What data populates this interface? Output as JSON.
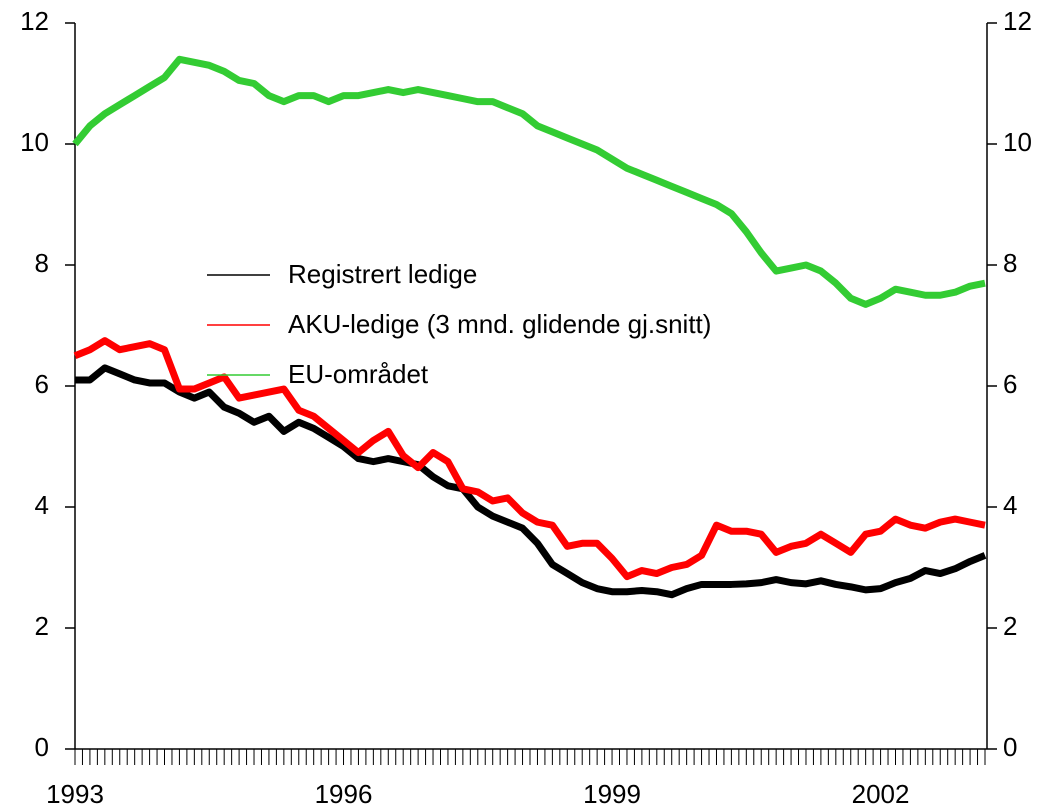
{
  "chart_data": {
    "type": "line",
    "categories": [
      "1993",
      null,
      null,
      null,
      null,
      null,
      null,
      null,
      null,
      null,
      null,
      null,
      null,
      null,
      null,
      null,
      null,
      null,
      "1996",
      null,
      null,
      null,
      null,
      null,
      null,
      null,
      null,
      null,
      null,
      null,
      null,
      null,
      null,
      null,
      null,
      null,
      "1999",
      null,
      null,
      null,
      null,
      null,
      null,
      null,
      null,
      null,
      null,
      null,
      null,
      null,
      null,
      null,
      null,
      null,
      "2002",
      null,
      null,
      null,
      null,
      null,
      null,
      null
    ],
    "series": [
      {
        "name": "Registrert ledige",
        "color": "#000000",
        "values": [
          6.1,
          6.1,
          6.3,
          6.2,
          6.1,
          6.05,
          6.05,
          5.9,
          5.8,
          5.9,
          5.65,
          5.55,
          5.4,
          5.5,
          5.25,
          5.4,
          5.3,
          5.15,
          5.0,
          4.8,
          4.75,
          4.8,
          4.75,
          4.7,
          4.5,
          4.35,
          4.3,
          4.0,
          3.85,
          3.75,
          3.65,
          3.4,
          3.05,
          2.9,
          2.75,
          2.65,
          2.6,
          2.6,
          2.62,
          2.6,
          2.55,
          2.65,
          2.72,
          2.72,
          2.72,
          2.73,
          2.75,
          2.8,
          2.75,
          2.73,
          2.78,
          2.72,
          2.68,
          2.63,
          2.65,
          2.75,
          2.82,
          2.95,
          2.9,
          2.98,
          3.1,
          3.2
        ]
      },
      {
        "name": "AKU-ledige (3 mnd. glidende gj.snitt)",
        "color": "#ff0000",
        "values": [
          6.5,
          6.6,
          6.75,
          6.6,
          6.65,
          6.7,
          6.6,
          5.95,
          5.95,
          6.05,
          6.15,
          5.8,
          5.85,
          5.9,
          5.95,
          5.6,
          5.5,
          5.3,
          5.1,
          4.9,
          5.1,
          5.25,
          4.85,
          4.65,
          4.9,
          4.75,
          4.3,
          4.25,
          4.1,
          4.15,
          3.9,
          3.75,
          3.7,
          3.35,
          3.4,
          3.4,
          3.15,
          2.85,
          2.95,
          2.9,
          3.0,
          3.05,
          3.2,
          3.7,
          3.6,
          3.6,
          3.55,
          3.25,
          3.35,
          3.4,
          3.55,
          3.4,
          3.25,
          3.55,
          3.6,
          3.8,
          3.7,
          3.65,
          3.75,
          3.8,
          3.75,
          3.7
        ]
      },
      {
        "name": "EU-området",
        "color": "#33cc33",
        "values": [
          10.0,
          10.3,
          10.5,
          10.65,
          10.8,
          10.95,
          11.1,
          11.4,
          11.35,
          11.3,
          11.2,
          11.05,
          11.0,
          10.8,
          10.7,
          10.8,
          10.8,
          10.7,
          10.8,
          10.8,
          10.85,
          10.9,
          10.85,
          10.9,
          10.85,
          10.8,
          10.75,
          10.7,
          10.7,
          10.6,
          10.5,
          10.3,
          10.2,
          10.1,
          10.0,
          9.9,
          9.75,
          9.6,
          9.5,
          9.4,
          9.3,
          9.2,
          9.1,
          9.0,
          8.85,
          8.55,
          8.2,
          7.9,
          7.95,
          8.0,
          7.9,
          7.7,
          7.45,
          7.35,
          7.45,
          7.6,
          7.55,
          7.5,
          7.5,
          7.55,
          7.65,
          7.7
        ]
      }
    ],
    "ylim": [
      0,
      12
    ],
    "yticks": [
      0,
      2,
      4,
      6,
      8,
      10,
      12
    ],
    "y2lim": [
      0,
      12
    ],
    "y2ticks": [
      0,
      2,
      4,
      6,
      8,
      10,
      12
    ]
  }
}
